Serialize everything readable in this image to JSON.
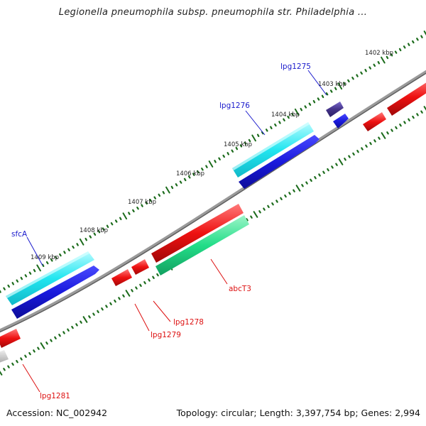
{
  "title": "Legionella pneumophila subsp. pneumophila str. Philadelphia ...",
  "footer": {
    "accession": "Accession: NC_002942",
    "summary": "Topology: circular; Length: 3,397,754 bp; Genes: 2,994"
  },
  "kbp_labels": [
    "1402 kbp",
    "1403 kbp",
    "1404 kbp",
    "1405 kbp",
    "1406 kbp",
    "1407 kbp",
    "1408 kbp",
    "1409 kbp"
  ],
  "gene_labels": {
    "lpg1275": "lpg1275",
    "lpg1276": "lpg1276",
    "sfcA": "sfcA",
    "abcT3": "abcT3",
    "lpg1278": "lpg1278",
    "lpg1279": "lpg1279",
    "lpg1281": "lpg1281"
  },
  "colors": {
    "backbone": "#808080",
    "tick": "#1b6b1b",
    "forward_label": "#1a1acc",
    "reverse_label": "#dd1111",
    "cyan_feature": "#22e6f0",
    "blue_feature": "#1a1add",
    "red_feature": "#ee1111",
    "green_feature": "#22dd88",
    "purple_feature": "#443388",
    "gray_feature": "#c8c8c8"
  }
}
